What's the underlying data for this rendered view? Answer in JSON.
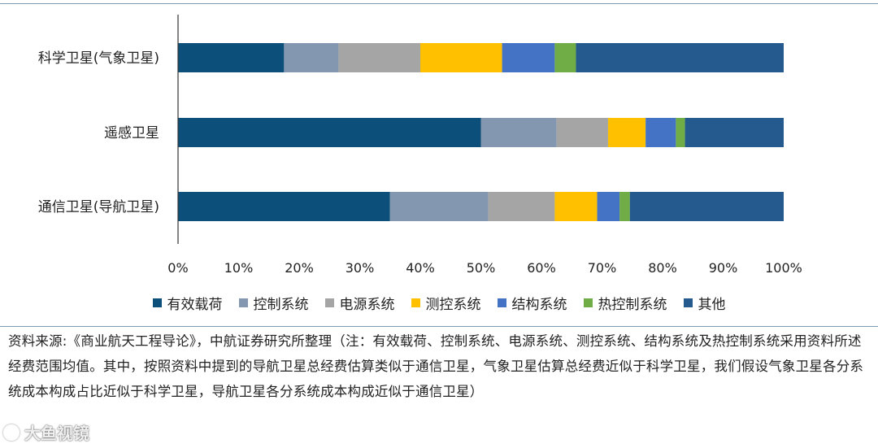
{
  "chart_data": {
    "type": "bar",
    "orientation": "horizontal",
    "stacked": true,
    "percent": true,
    "categories": [
      "科学卫星(气象卫星)",
      "遥感卫星",
      "通信卫星(导航卫星)"
    ],
    "series": [
      {
        "name": "有效载荷",
        "color": "#0b4f7a",
        "values": [
          17.5,
          50.0,
          35.0
        ]
      },
      {
        "name": "控制系统",
        "color": "#8497b0",
        "values": [
          9.0,
          12.5,
          16.2
        ]
      },
      {
        "name": "电源系统",
        "color": "#a5a5a5",
        "values": [
          13.5,
          8.5,
          11.0
        ]
      },
      {
        "name": "测控系统",
        "color": "#ffc000",
        "values": [
          13.5,
          6.2,
          7.0
        ]
      },
      {
        "name": "结构系统",
        "color": "#4472c4",
        "values": [
          8.7,
          5.0,
          3.7
        ]
      },
      {
        "name": "热控制系统",
        "color": "#70ad47",
        "values": [
          3.5,
          1.5,
          1.7
        ]
      },
      {
        "name": "其他",
        "color": "#245a8d",
        "values": [
          34.3,
          16.3,
          25.4
        ]
      }
    ],
    "xlim": [
      0,
      100
    ],
    "xticks": [
      "0%",
      "10%",
      "20%",
      "30%",
      "40%",
      "50%",
      "60%",
      "70%",
      "80%",
      "90%",
      "100%"
    ],
    "grid": false,
    "legend_position": "bottom"
  },
  "source_note": "资料来源:《商业航天工程导论》，中航证券研究所整理（注：有效载荷、控制系统、电源系统、测控系统、结构系统及热控制系统采用资料所述经费范围均值。其中，按照资料中提到的导航卫星总经费估算类似于通信卫星，气象卫星估算总经费近似于科学卫星，我们假设气象卫星各分系统成本构成占比近似于科学卫星，导航卫星各分系统成本构成近似于通信卫星）",
  "watermark": "大鱼视镜"
}
